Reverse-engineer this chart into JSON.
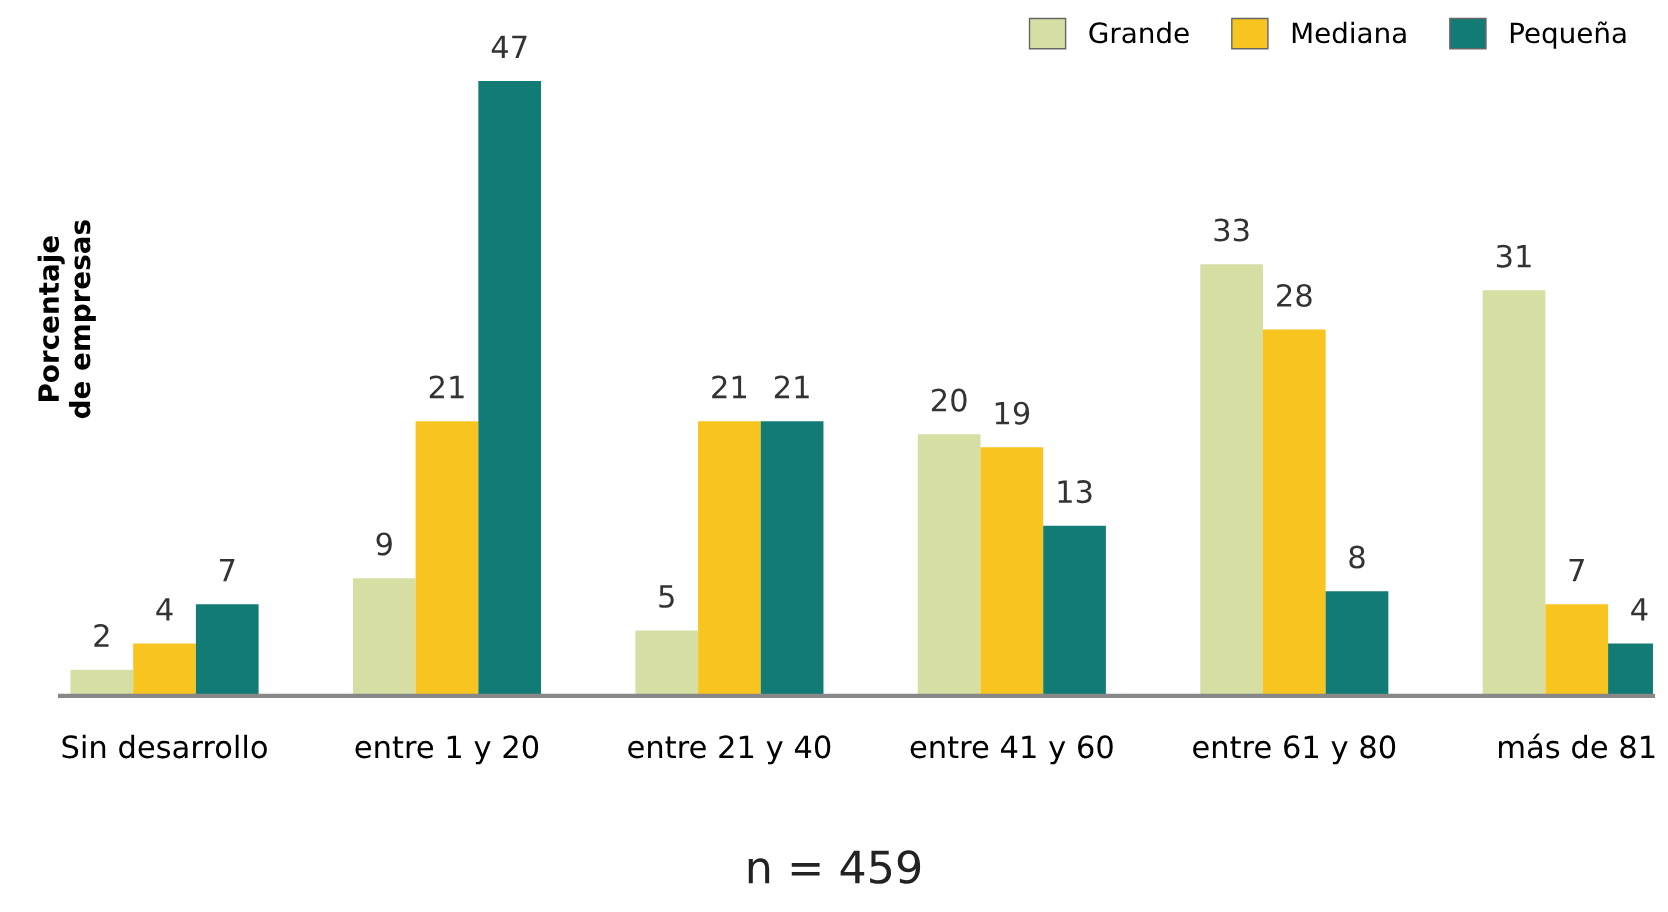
{
  "chart_data": {
    "type": "bar",
    "ylabel": "Porcentaje\nde empresas",
    "categories": [
      "Sin desarrollo",
      "entre 1 y 20",
      "entre 21 y 40",
      "entre 41 y 60",
      "entre 61 y 80",
      "más de 81"
    ],
    "series": [
      {
        "name": "Grande",
        "color": "#d6dea4",
        "values": [
          2,
          9,
          5,
          20,
          33,
          31
        ]
      },
      {
        "name": "Mediana",
        "color": "#f8c41f",
        "values": [
          4,
          21,
          21,
          19,
          28,
          7
        ]
      },
      {
        "name": "Pequeña",
        "color": "#137b75",
        "values": [
          7,
          47,
          21,
          13,
          8,
          4
        ]
      }
    ],
    "data_labels": true,
    "legend": "top right",
    "grid": false,
    "annotations": [
      "n = 459"
    ]
  }
}
